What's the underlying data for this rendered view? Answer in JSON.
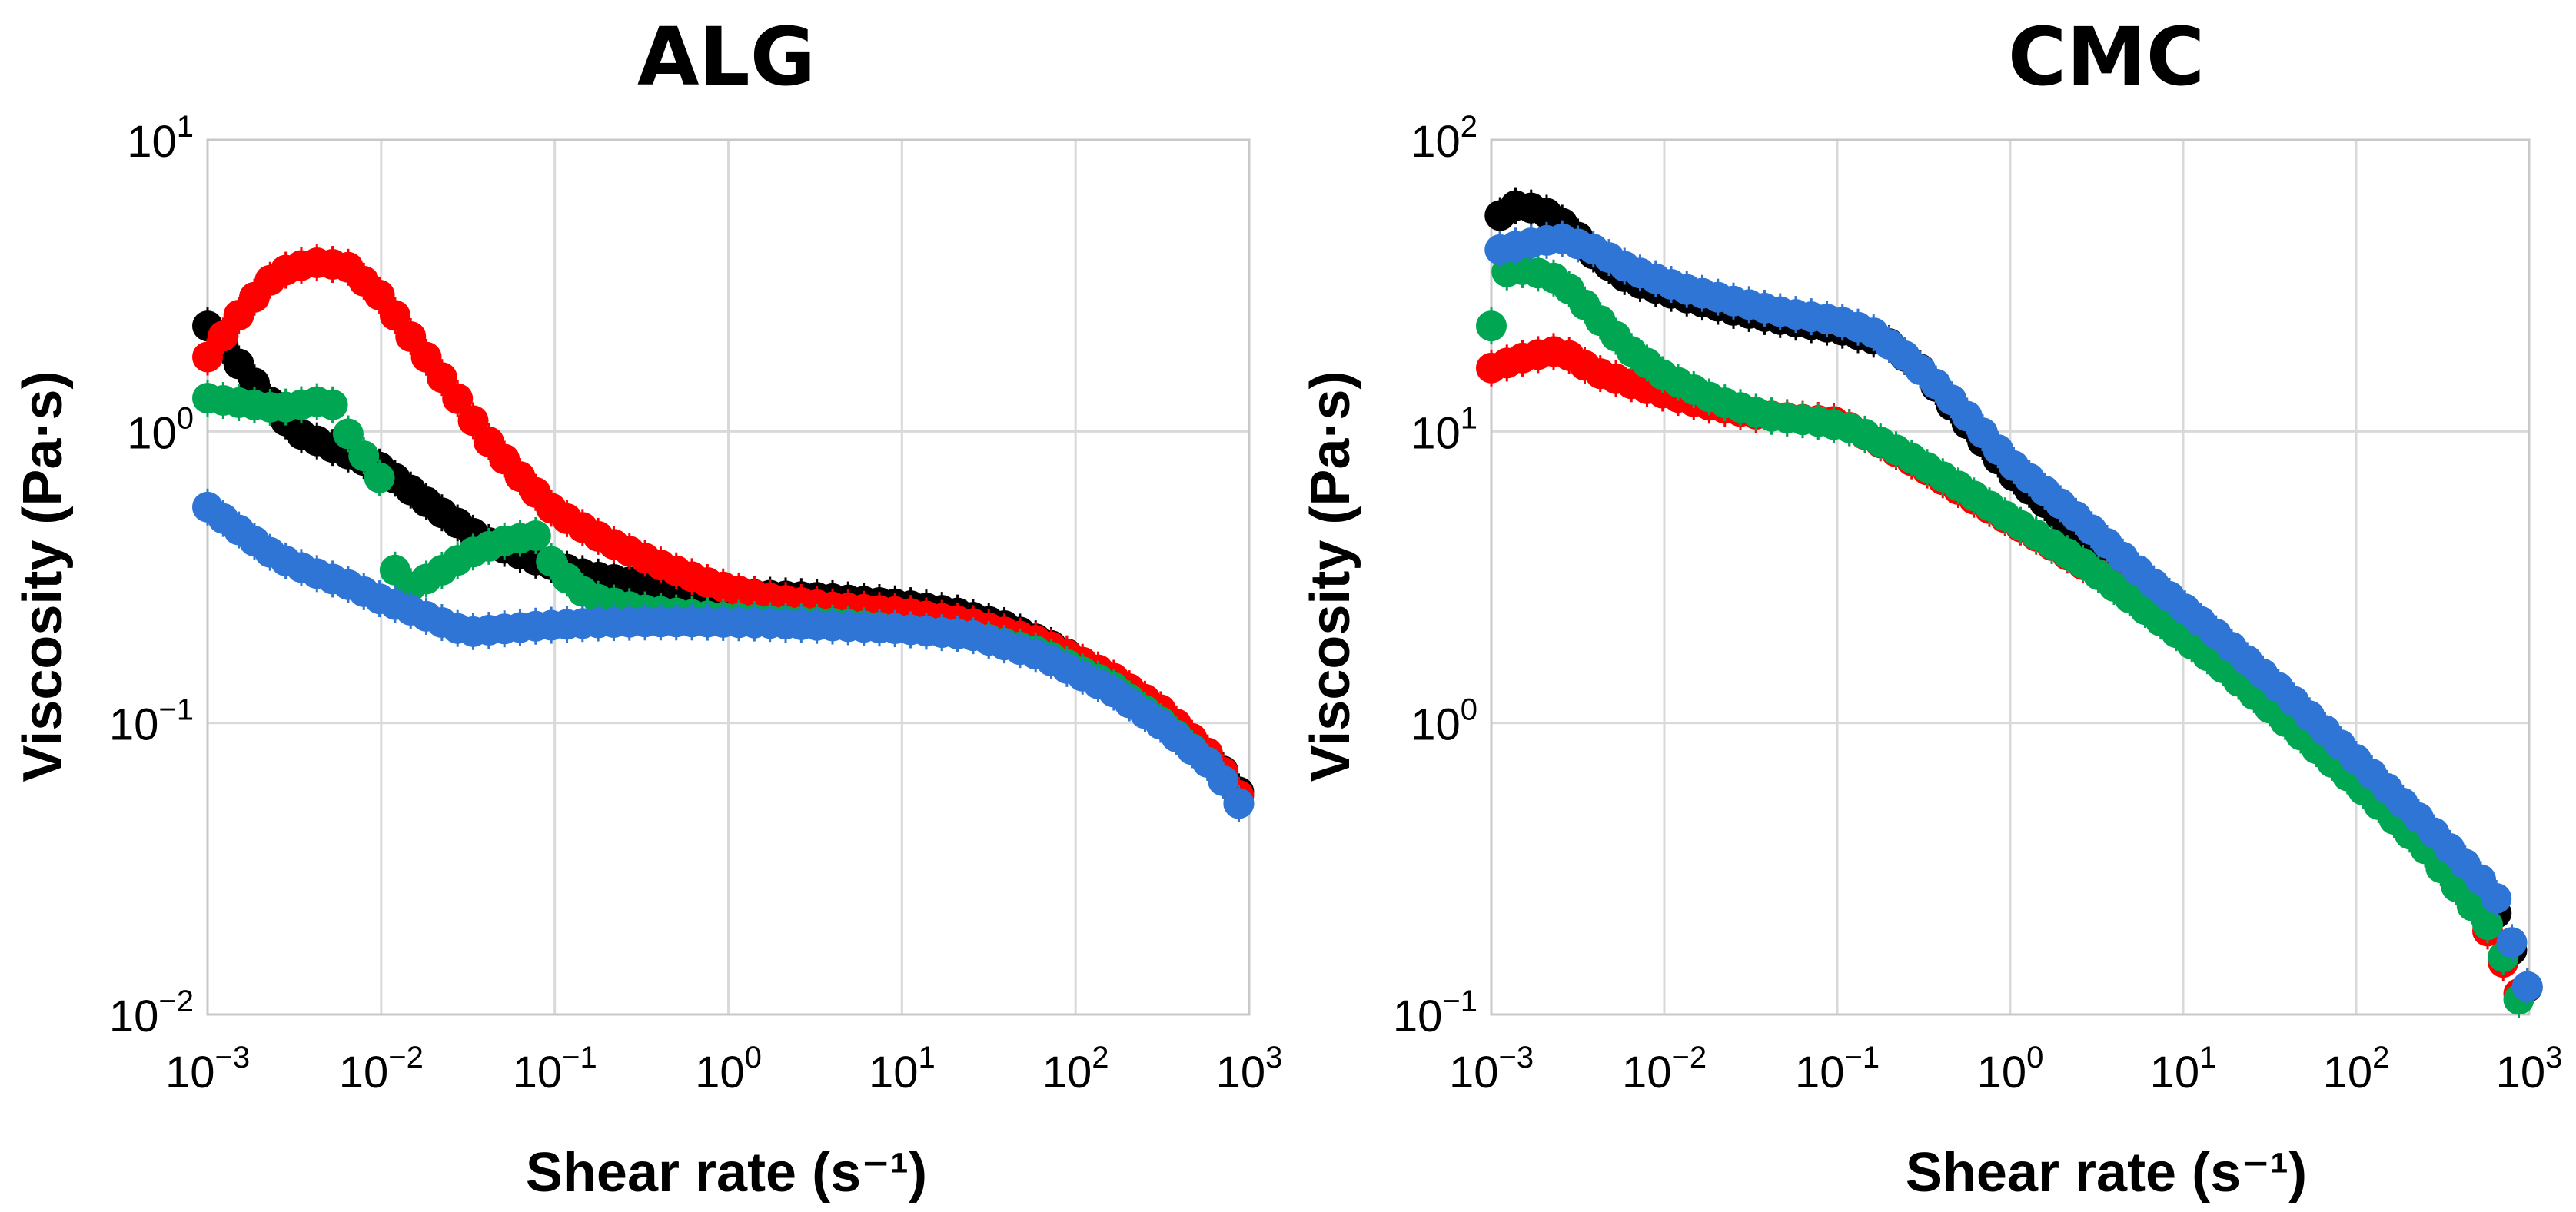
{
  "chart_data": [
    {
      "type": "scatter",
      "title": "ALG",
      "xlabel": "Shear rate (s⁻¹)",
      "ylabel": "Viscosity (Pa·s)",
      "xscale": "log",
      "yscale": "log",
      "xlim": [
        0.001,
        1000
      ],
      "ylim": [
        0.01,
        10
      ],
      "x_ticks": [
        {
          "base": "10",
          "exp": "−3"
        },
        {
          "base": "10",
          "exp": "−2"
        },
        {
          "base": "10",
          "exp": "−1"
        },
        {
          "base": "10",
          "exp": "0"
        },
        {
          "base": "10",
          "exp": "1"
        },
        {
          "base": "10",
          "exp": "2"
        },
        {
          "base": "10",
          "exp": "3"
        }
      ],
      "y_ticks": [
        {
          "base": "10",
          "exp": "−2"
        },
        {
          "base": "10",
          "exp": "−1"
        },
        {
          "base": "10",
          "exp": "0"
        },
        {
          "base": "10",
          "exp": "1"
        }
      ],
      "grid": true,
      "series": [
        {
          "color": "#000000",
          "points": [
            [
              -3,
              2.3
            ],
            [
              -2.5,
              1.0
            ],
            [
              -2.0,
              0.75
            ],
            [
              -1.7,
              0.55
            ],
            [
              -1.4,
              0.42
            ],
            [
              -1.1,
              0.36
            ],
            [
              -0.8,
              0.32
            ],
            [
              -0.5,
              0.3
            ],
            [
              -0.2,
              0.285
            ],
            [
              0,
              0.278
            ],
            [
              0.5,
              0.27
            ],
            [
              1.0,
              0.255
            ],
            [
              1.3,
              0.24
            ],
            [
              1.6,
              0.215
            ],
            [
              1.9,
              0.18
            ],
            [
              2.2,
              0.14
            ],
            [
              2.5,
              0.105
            ],
            [
              2.8,
              0.075
            ],
            [
              3.0,
              0.052
            ]
          ]
        },
        {
          "color": "#ff0000",
          "points": [
            [
              -3,
              1.8
            ],
            [
              -2.8,
              2.6
            ],
            [
              -2.6,
              3.5
            ],
            [
              -2.4,
              3.8
            ],
            [
              -2.2,
              3.7
            ],
            [
              -2.0,
              2.9
            ],
            [
              -1.8,
              2.0
            ],
            [
              -1.6,
              1.4
            ],
            [
              -1.4,
              0.95
            ],
            [
              -1.2,
              0.7
            ],
            [
              -1.0,
              0.53
            ],
            [
              -0.7,
              0.42
            ],
            [
              -0.4,
              0.35
            ],
            [
              -0.1,
              0.3
            ],
            [
              0.2,
              0.27
            ],
            [
              0.6,
              0.25
            ],
            [
              1.0,
              0.24
            ],
            [
              1.4,
              0.22
            ],
            [
              1.8,
              0.19
            ],
            [
              2.2,
              0.145
            ],
            [
              2.5,
              0.11
            ],
            [
              2.8,
              0.075
            ],
            [
              3.0,
              0.05
            ]
          ]
        },
        {
          "color": "#00a651",
          "points": [
            [
              -3,
              1.3
            ],
            [
              -2.8,
              1.25
            ],
            [
              -2.6,
              1.2
            ],
            [
              -2.4,
              1.25
            ],
            [
              -2.3,
              1.3
            ],
            [
              -2.2,
              1.0
            ],
            [
              -2.0,
              0.68
            ],
            [
              -1.9,
              0.28
            ],
            [
              -1.7,
              0.32
            ],
            [
              -1.5,
              0.38
            ],
            [
              -1.3,
              0.42
            ],
            [
              -1.1,
              0.44
            ],
            [
              -1.0,
              0.34
            ],
            [
              -0.8,
              0.27
            ],
            [
              -0.5,
              0.245
            ],
            [
              -0.2,
              0.235
            ],
            [
              0.2,
              0.225
            ],
            [
              0.6,
              0.22
            ],
            [
              1.0,
              0.21
            ],
            [
              1.4,
              0.2
            ],
            [
              1.8,
              0.175
            ],
            [
              2.2,
              0.135
            ],
            [
              2.5,
              0.1
            ],
            [
              2.8,
              0.07
            ],
            [
              3.0,
              0.047
            ]
          ]
        },
        {
          "color": "#2e75d6",
          "points": [
            [
              -3,
              0.55
            ],
            [
              -2.8,
              0.45
            ],
            [
              -2.6,
              0.37
            ],
            [
              -2.4,
              0.33
            ],
            [
              -2.2,
              0.3
            ],
            [
              -2.0,
              0.265
            ],
            [
              -1.8,
              0.24
            ],
            [
              -1.6,
              0.215
            ],
            [
              -1.5,
              0.205
            ],
            [
              -1.3,
              0.21
            ],
            [
              -1.1,
              0.215
            ],
            [
              -0.8,
              0.22
            ],
            [
              -0.5,
              0.222
            ],
            [
              -0.2,
              0.222
            ],
            [
              0.2,
              0.22
            ],
            [
              0.6,
              0.215
            ],
            [
              1.0,
              0.21
            ],
            [
              1.4,
              0.2
            ],
            [
              1.8,
              0.17
            ],
            [
              2.2,
              0.13
            ],
            [
              2.5,
              0.098
            ],
            [
              2.8,
              0.07
            ],
            [
              3.0,
              0.047
            ]
          ]
        }
      ]
    },
    {
      "type": "scatter",
      "title": "CMC",
      "xlabel": "Shear rate (s⁻¹)",
      "ylabel": "Viscosity (Pa·s)",
      "xscale": "log",
      "yscale": "log",
      "xlim": [
        0.001,
        1000
      ],
      "ylim": [
        0.1,
        100
      ],
      "x_ticks": [
        {
          "base": "10",
          "exp": "−3"
        },
        {
          "base": "10",
          "exp": "−2"
        },
        {
          "base": "10",
          "exp": "−1"
        },
        {
          "base": "10",
          "exp": "0"
        },
        {
          "base": "10",
          "exp": "1"
        },
        {
          "base": "10",
          "exp": "2"
        },
        {
          "base": "10",
          "exp": "3"
        }
      ],
      "y_ticks": [
        {
          "base": "10",
          "exp": "−1"
        },
        {
          "base": "10",
          "exp": "0"
        },
        {
          "base": "10",
          "exp": "1"
        },
        {
          "base": "10",
          "exp": "2"
        }
      ],
      "grid": true,
      "series": [
        {
          "color": "#000000",
          "points": [
            [
              -2.95,
              55
            ],
            [
              -2.85,
              60
            ],
            [
              -2.7,
              57
            ],
            [
              -2.55,
              50
            ],
            [
              -2.4,
              40
            ],
            [
              -2.2,
              33
            ],
            [
              -1.9,
              29
            ],
            [
              -1.6,
              26
            ],
            [
              -1.3,
              24
            ],
            [
              -1.0,
              22.5
            ],
            [
              -0.7,
              20
            ],
            [
              -0.5,
              16
            ],
            [
              -0.3,
              11.5
            ],
            [
              0,
              7.2
            ],
            [
              0.4,
              4.5
            ],
            [
              0.8,
              2.8
            ],
            [
              1.2,
              1.8
            ],
            [
              1.6,
              1.1
            ],
            [
              2.0,
              0.65
            ],
            [
              2.4,
              0.4
            ],
            [
              2.8,
              0.23
            ],
            [
              3.0,
              0.12
            ]
          ]
        },
        {
          "color": "#ff0000",
          "points": [
            [
              -3,
              16.5
            ],
            [
              -2.8,
              18
            ],
            [
              -2.6,
              19
            ],
            [
              -2.4,
              16
            ],
            [
              -2.1,
              14
            ],
            [
              -1.8,
              12.5
            ],
            [
              -1.5,
              11.5
            ],
            [
              -1.2,
              11
            ],
            [
              -1.0,
              10.8
            ],
            [
              -0.8,
              9.5
            ],
            [
              -0.5,
              7.5
            ],
            [
              -0.2,
              5.8
            ],
            [
              0.2,
              4.2
            ],
            [
              0.6,
              3.0
            ],
            [
              1.0,
              2.0
            ],
            [
              1.4,
              1.3
            ],
            [
              1.8,
              0.82
            ],
            [
              2.2,
              0.5
            ],
            [
              2.6,
              0.3
            ],
            [
              3.0,
              0.1
            ]
          ]
        },
        {
          "color": "#00a651",
          "points": [
            [
              -3,
              23
            ],
            [
              -2.95,
              35
            ],
            [
              -2.8,
              36
            ],
            [
              -2.6,
              33
            ],
            [
              -2.4,
              25
            ],
            [
              -2.2,
              19
            ],
            [
              -2.0,
              15.5
            ],
            [
              -1.7,
              12.8
            ],
            [
              -1.4,
              11.3
            ],
            [
              -1.1,
              10.8
            ],
            [
              -0.9,
              10.2
            ],
            [
              -0.6,
              8.3
            ],
            [
              -0.3,
              6.5
            ],
            [
              0,
              5.0
            ],
            [
              0.4,
              3.6
            ],
            [
              0.8,
              2.4
            ],
            [
              1.2,
              1.6
            ],
            [
              1.6,
              1.0
            ],
            [
              2.0,
              0.62
            ],
            [
              2.4,
              0.37
            ],
            [
              2.8,
              0.19
            ],
            [
              3.0,
              0.09
            ]
          ]
        },
        {
          "color": "#2e75d6",
          "points": [
            [
              -2.95,
              42
            ],
            [
              -2.8,
              44
            ],
            [
              -2.6,
              46
            ],
            [
              -2.4,
              42
            ],
            [
              -2.2,
              36
            ],
            [
              -1.9,
              31
            ],
            [
              -1.6,
              28
            ],
            [
              -1.3,
              25.5
            ],
            [
              -1.0,
              24
            ],
            [
              -0.8,
              22
            ],
            [
              -0.6,
              18
            ],
            [
              -0.4,
              14
            ],
            [
              -0.2,
              10.5
            ],
            [
              0,
              7.8
            ],
            [
              0.4,
              5.0
            ],
            [
              0.8,
              3.1
            ],
            [
              1.2,
              2.0
            ],
            [
              1.6,
              1.25
            ],
            [
              2.0,
              0.75
            ],
            [
              2.4,
              0.45
            ],
            [
              2.8,
              0.26
            ],
            [
              3.0,
              0.12
            ]
          ]
        }
      ]
    }
  ]
}
